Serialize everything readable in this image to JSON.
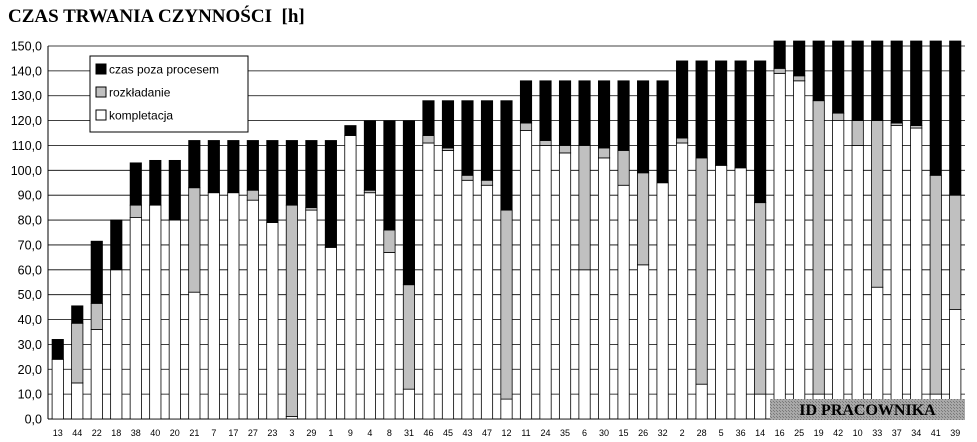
{
  "chart_data": {
    "type": "bar",
    "stacked": true,
    "title": "CZAS TRWANIA CZYNNOŚCI  [h]",
    "xlabel_badge": "ID PRACOWNIKA",
    "ylim": [
      0,
      150
    ],
    "yticks": [
      "0,0",
      "10,0",
      "20,0",
      "30,0",
      "40,0",
      "50,0",
      "60,0",
      "70,0",
      "80,0",
      "90,0",
      "100,0",
      "110,0",
      "120,0",
      "130,0",
      "140,0",
      "150,0"
    ],
    "grid": true,
    "legend_position": "top-left",
    "categories": [
      "13",
      "44",
      "22",
      "18",
      "38",
      "40",
      "20",
      "21",
      "7",
      "17",
      "27",
      "23",
      "3",
      "29",
      "1",
      "9",
      "4",
      "8",
      "31",
      "46",
      "45",
      "43",
      "47",
      "12",
      "11",
      "24",
      "35",
      "6",
      "30",
      "15",
      "26",
      "32",
      "2",
      "28",
      "5",
      "36",
      "14",
      "16",
      "25",
      "19",
      "42",
      "10",
      "33",
      "37",
      "34",
      "41",
      "39"
    ],
    "series": [
      {
        "name": "kompletacja",
        "color": "#ffffff",
        "values": [
          24,
          14.5,
          36,
          60,
          81,
          86,
          80,
          51,
          91,
          91,
          88,
          79,
          1,
          84,
          69,
          114,
          91,
          67,
          12,
          111,
          108,
          96,
          94,
          8,
          116,
          110,
          107,
          60,
          105,
          94,
          62,
          95,
          111,
          14,
          102,
          101,
          10,
          139,
          136,
          10,
          120,
          110,
          53,
          118,
          117,
          10,
          44
        ]
      },
      {
        "name": "rozkładanie",
        "color": "#c0c0c0",
        "values": [
          0,
          24,
          10.5,
          0,
          5,
          0,
          0,
          42,
          0,
          0,
          4,
          0,
          85,
          1,
          0,
          0,
          1,
          9,
          42,
          3,
          1,
          2,
          2,
          76,
          3,
          2,
          3,
          50,
          4,
          14,
          37,
          0,
          2,
          91,
          0,
          0,
          77,
          2,
          2,
          118,
          3,
          10,
          67,
          1,
          1,
          88,
          46
        ]
      },
      {
        "name": "czas poza procesem",
        "color": "#000000",
        "values": [
          8,
          7,
          25,
          20,
          17,
          18,
          24,
          19,
          21,
          21,
          20,
          33,
          26,
          27,
          43,
          4,
          28,
          44,
          66,
          14,
          19,
          30,
          32,
          44,
          17,
          24,
          26,
          26,
          27,
          28,
          37,
          41,
          31,
          39,
          42,
          43,
          57,
          11,
          14,
          24,
          29,
          32,
          32,
          33,
          34,
          54,
          62
        ]
      }
    ],
    "legend_entries": [
      "czas poza procesem",
      "rozkładanie",
      "kompletacja"
    ]
  }
}
